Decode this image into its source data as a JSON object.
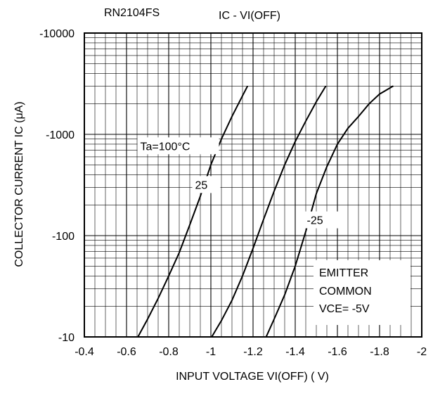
{
  "part_number": "RN2104FS",
  "chart_data": {
    "type": "line",
    "title": "IC - VI(OFF)",
    "xlabel": "INPUT VOLTAGE VI(OFF) ( V)",
    "ylabel": "COLLECTOR CURRENT IC (μA)",
    "x_scale": "linear",
    "y_scale": "log",
    "xlim": [
      -0.4,
      -2.0
    ],
    "ylim": [
      -10,
      -10000
    ],
    "x_ticks": [
      "-0.4",
      "-0.6",
      "-0.8",
      "-1",
      "-1.2",
      "-1.4",
      "-1.6",
      "-1.8",
      "-2"
    ],
    "y_ticks": [
      "-10",
      "-100",
      "-1000",
      "-10000"
    ],
    "grid": true,
    "series": [
      {
        "name": "Ta=100°C",
        "x": [
          -0.654,
          -0.7,
          -0.75,
          -0.8,
          -0.85,
          -0.9,
          -0.95,
          -1.0,
          -1.05,
          -1.1,
          -1.15,
          -1.174
        ],
        "y": [
          -10,
          -15.0,
          -24.0,
          -40.0,
          -68.0,
          -128,
          -245,
          -500,
          -900,
          -1500,
          -2400,
          -3000
        ]
      },
      {
        "name": "25",
        "x": [
          -1.004,
          -1.05,
          -1.1,
          -1.15,
          -1.2,
          -1.25,
          -1.3,
          -1.35,
          -1.4,
          -1.45,
          -1.5,
          -1.545
        ],
        "y": [
          -10,
          -14.5,
          -23.0,
          -40.0,
          -75.0,
          -145,
          -275,
          -500,
          -850,
          -1350,
          -2100,
          -3000
        ]
      },
      {
        "name": "-25",
        "x": [
          -1.262,
          -1.3,
          -1.35,
          -1.4,
          -1.45,
          -1.5,
          -1.55,
          -1.6,
          -1.65,
          -1.7,
          -1.75,
          -1.8,
          -1.865
        ],
        "y": [
          -10,
          -15.0,
          -26.0,
          -50.0,
          -110,
          -260,
          -480,
          -800,
          -1150,
          -1500,
          -2000,
          -2500,
          -3000
        ]
      }
    ],
    "annotations": [
      "EMITTER",
      "COMMON",
      "VCE= -5V"
    ]
  }
}
